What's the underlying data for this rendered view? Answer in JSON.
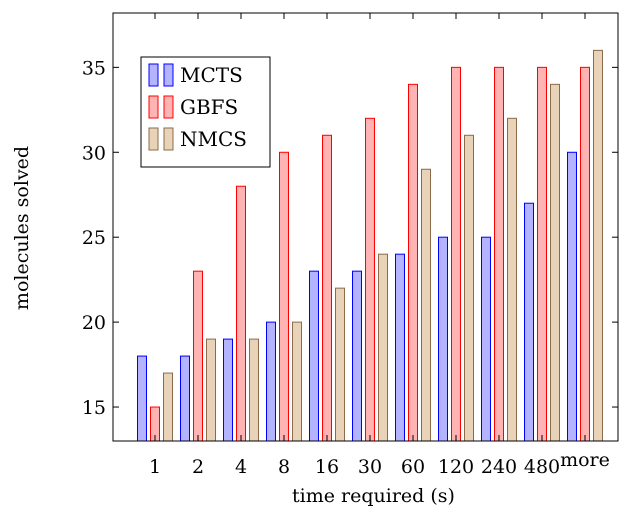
{
  "chart_data": {
    "type": "bar",
    "title": "",
    "xlabel": "time required (s)",
    "ylabel": "molecules solved",
    "categories": [
      "1",
      "2",
      "4",
      "8",
      "16",
      "30",
      "60",
      "120",
      "240",
      "480",
      "more"
    ],
    "ylim": [
      13,
      38.2
    ],
    "yticks": [
      15,
      20,
      25,
      30,
      35
    ],
    "series": [
      {
        "name": "MCTS",
        "fill": "#b3b3ff",
        "stroke": "#0000ff",
        "values": [
          18,
          18,
          19,
          20,
          23,
          23,
          24,
          25,
          25,
          27,
          30
        ]
      },
      {
        "name": "GBFS",
        "fill": "#ffb3b3",
        "stroke": "#ff0000",
        "values": [
          15,
          23,
          28,
          30,
          31,
          32,
          34,
          35,
          35,
          35,
          35
        ]
      },
      {
        "name": "NMCS",
        "fill": "#e8d3b9",
        "stroke": "#8b6b4a",
        "values": [
          17,
          19,
          19,
          20,
          22,
          24,
          29,
          31,
          32,
          34,
          36
        ]
      }
    ],
    "legend_position": "top-left",
    "grid": false
  }
}
